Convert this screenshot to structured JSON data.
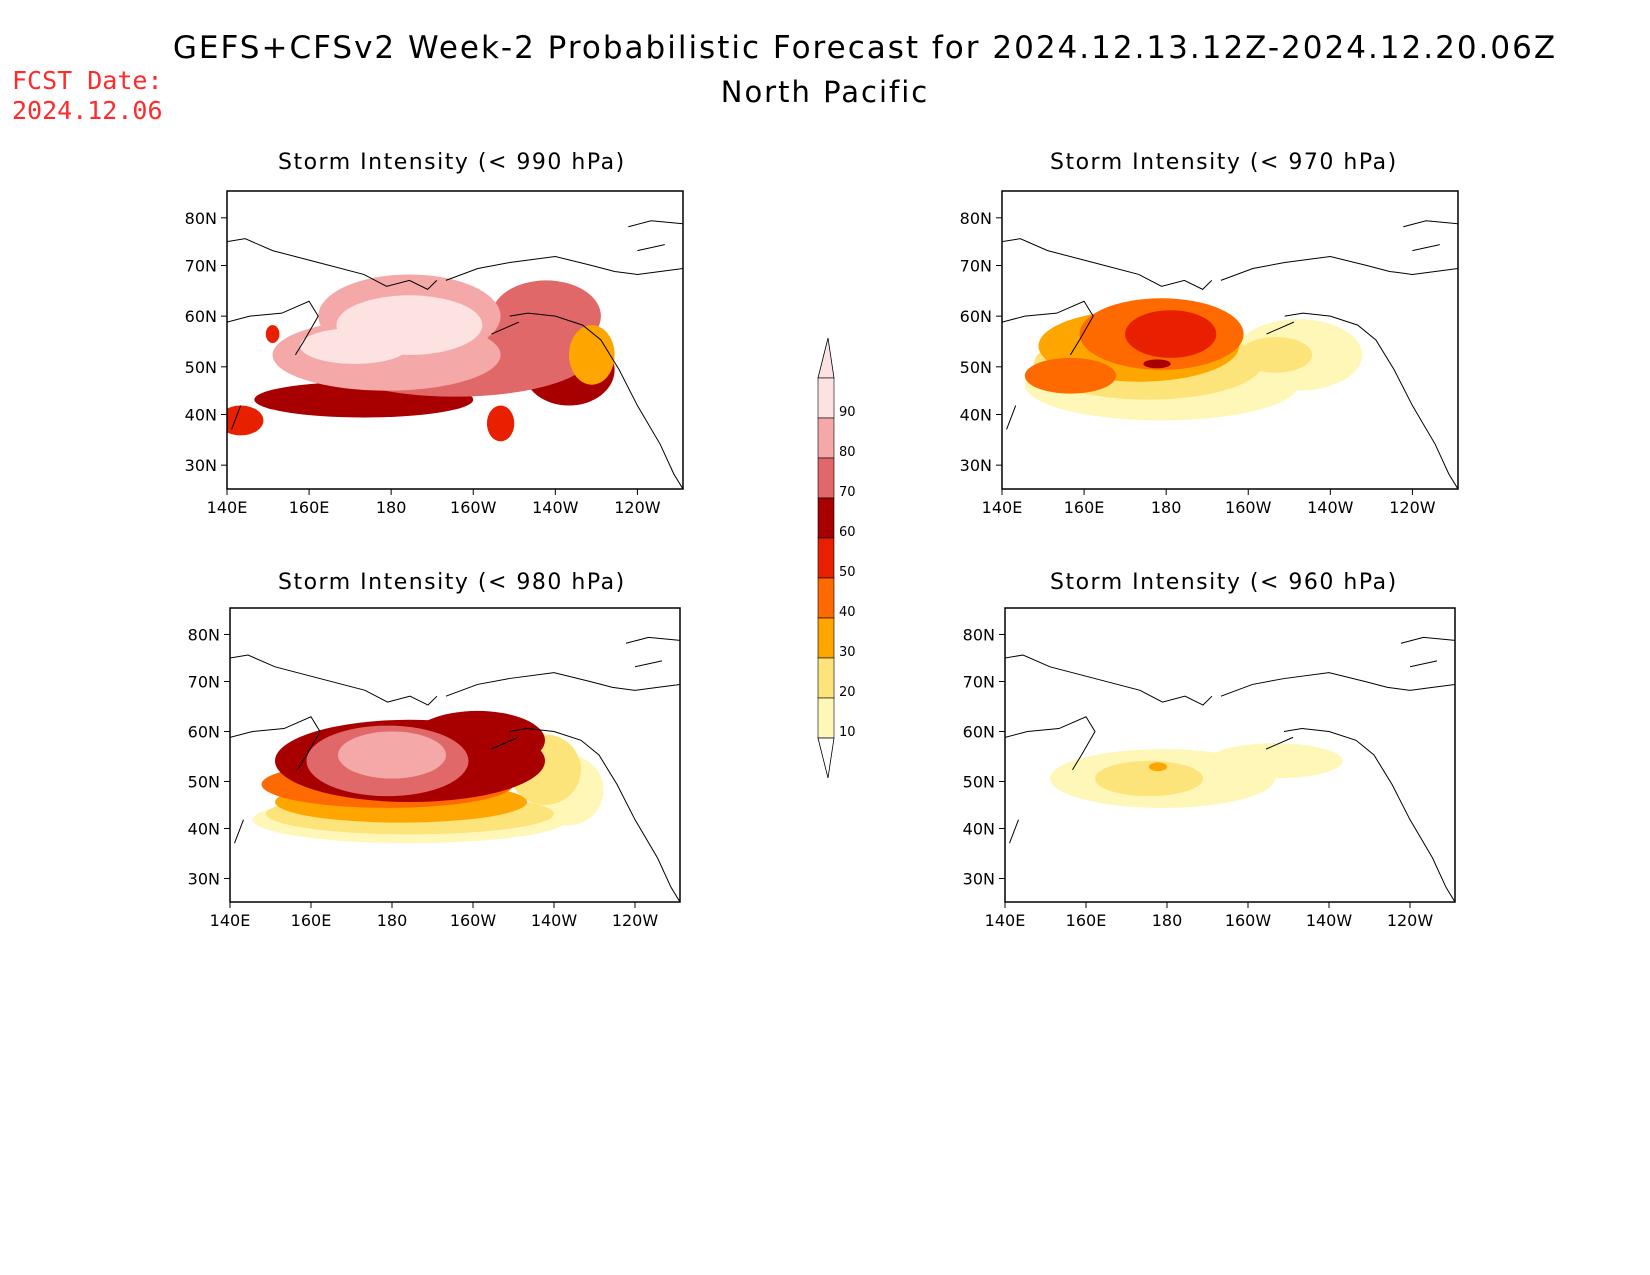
{
  "header": {
    "title": "GEFS+CFSv2 Week-2 Probabilistic Forecast for 2024.12.13.12Z-2024.12.20.06Z",
    "subtitle": "North Pacific",
    "fcst_label": "FCST Date:",
    "fcst_date": "2024.12.06"
  },
  "axes": {
    "lon_labels": [
      "140E",
      "160E",
      "180",
      "160W",
      "140W",
      "120W"
    ],
    "lat_labels": [
      "80N",
      "70N",
      "60N",
      "50N",
      "40N",
      "30N"
    ]
  },
  "panels": [
    {
      "title": "Storm Intensity (< 990 hPa)"
    },
    {
      "title": "Storm Intensity (< 970 hPa)"
    },
    {
      "title": "Storm Intensity (< 980 hPa)"
    },
    {
      "title": "Storm Intensity (< 960 hPa)"
    }
  ],
  "colorbar": {
    "levels": [
      "10",
      "20",
      "30",
      "40",
      "50",
      "60",
      "70",
      "80",
      "90"
    ],
    "colors": [
      "#fff7b8",
      "#fde47a",
      "#ffa500",
      "#ff6a00",
      "#e82000",
      "#a80000",
      "#e06868",
      "#f4a8a8",
      "#fde2e2"
    ]
  }
}
